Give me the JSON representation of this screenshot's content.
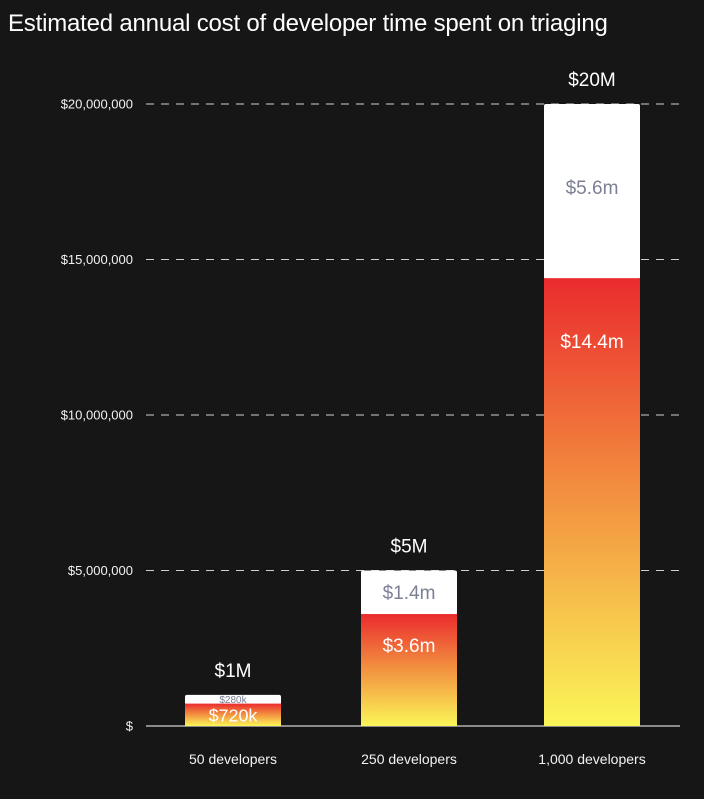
{
  "title": "Estimated annual cost of developer time spent on triaging",
  "colors": {
    "background": "#161616",
    "upper_segment": "#ffffff",
    "upper_label": "#7b7f93",
    "gradient_top": "#ea2b2e",
    "gradient_mid": "#f28a3e",
    "gradient_bottom": "#fbf658",
    "grid": "#d0d0d0",
    "text": "#f2f2f2"
  },
  "chart_data": {
    "type": "bar",
    "stacked": true,
    "title": "Estimated annual cost of developer time spent on triaging",
    "xlabel": "",
    "ylabel": "",
    "ylim": [
      0,
      20000000
    ],
    "yticks": [
      0,
      5000000,
      10000000,
      15000000,
      20000000
    ],
    "ytick_labels": [
      "$",
      "$5,000,000",
      "$10,000,000",
      "$15,000,000",
      "$20,000,000"
    ],
    "grid": "dashed horizontal",
    "categories": [
      "50 developers",
      "250 developers",
      "1,000 developers"
    ],
    "series": [
      {
        "name": "lower (gradient)",
        "values": [
          720000,
          3600000,
          14400000
        ],
        "labels": [
          "$720k",
          "$3.6m",
          "$14.4m"
        ]
      },
      {
        "name": "upper (white)",
        "values": [
          280000,
          1400000,
          5600000
        ],
        "labels": [
          "$280k",
          "$1.4m",
          "$5.6m"
        ]
      }
    ],
    "totals": [
      1000000,
      5000000,
      20000000
    ],
    "total_labels": [
      "$1M",
      "$5M",
      "$20M"
    ]
  }
}
